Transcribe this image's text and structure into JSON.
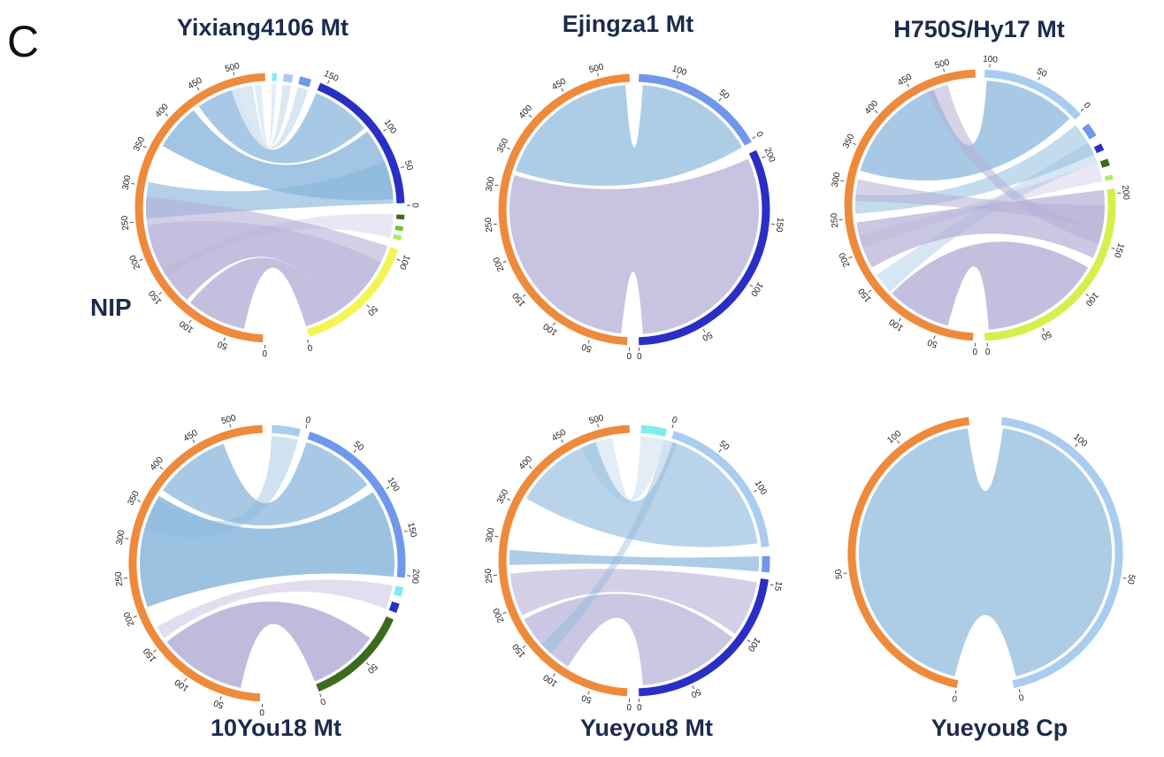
{
  "panel_label": "C",
  "row_label": "NIP",
  "colors": {
    "nip": "#ee8a3c",
    "blue_link": "#8ab7dc",
    "purple_link": "#b4afd6",
    "title": "#1c2b4d"
  },
  "diagrams": [
    {
      "title": "Yixiang4106 Mt",
      "segments": [
        {
          "name": "NIP",
          "color": "#ee8a3c",
          "ticks": [
            "0",
            "50",
            "100",
            "150",
            "200",
            "250",
            "300",
            "350",
            "400",
            "450",
            "500"
          ]
        },
        {
          "name": "",
          "color": "#7fecef",
          "ticks": []
        },
        {
          "name": "",
          "color": "#a9ccf0",
          "ticks": []
        },
        {
          "name": "",
          "color": "#6f98ec",
          "ticks": []
        },
        {
          "name": "",
          "color": "#2a2fc4",
          "ticks": [
            "0",
            "50",
            "100",
            "150"
          ]
        },
        {
          "name": "",
          "color": "#3d6b1e",
          "ticks": []
        },
        {
          "name": "",
          "color": "#64c83a",
          "ticks": []
        },
        {
          "name": "",
          "color": "#a8ec66",
          "ticks": []
        },
        {
          "name": "",
          "color": "#f4f554",
          "ticks": [
            "0",
            "50",
            "100"
          ]
        }
      ]
    },
    {
      "title": "Ejingza1 Mt",
      "segments": [
        {
          "name": "NIP",
          "color": "#ee8a3c",
          "ticks": [
            "0",
            "50",
            "100",
            "150",
            "200",
            "250",
            "300",
            "350",
            "400",
            "450",
            "500"
          ]
        },
        {
          "name": "",
          "color": "#6f98ec",
          "ticks": [
            "0",
            "50",
            "100"
          ]
        },
        {
          "name": "",
          "color": "#2a2fc4",
          "ticks": [
            "0",
            "50",
            "100",
            "150",
            "200"
          ]
        }
      ]
    },
    {
      "title": "H750S/Hy17 Mt",
      "segments": [
        {
          "name": "NIP",
          "color": "#ee8a3c",
          "ticks": [
            "0",
            "50",
            "100",
            "150",
            "200",
            "250",
            "300",
            "350",
            "400",
            "450",
            "500"
          ]
        },
        {
          "name": "",
          "color": "#a9ccf0",
          "ticks": [
            "0",
            "50",
            "100"
          ]
        },
        {
          "name": "",
          "color": "#6f98ec",
          "ticks": []
        },
        {
          "name": "",
          "color": "#2a2fc4",
          "ticks": []
        },
        {
          "name": "",
          "color": "#3d6b1e",
          "ticks": []
        },
        {
          "name": "",
          "color": "#a8ec66",
          "ticks": []
        },
        {
          "name": "",
          "color": "#d6ef4c",
          "ticks": [
            "0",
            "50",
            "100",
            "150",
            "200"
          ]
        }
      ]
    },
    {
      "title": "10You18 Mt",
      "segments": [
        {
          "name": "NIP",
          "color": "#ee8a3c",
          "ticks": [
            "0",
            "50",
            "100",
            "150",
            "200",
            "250",
            "300",
            "350",
            "400",
            "450",
            "500"
          ]
        },
        {
          "name": "",
          "color": "#a9ccf0",
          "ticks": []
        },
        {
          "name": "",
          "color": "#6f98ec",
          "ticks": [
            "0",
            "50",
            "100",
            "150",
            "200"
          ]
        },
        {
          "name": "",
          "color": "#7fecef",
          "ticks": []
        },
        {
          "name": "",
          "color": "#2a2fc4",
          "ticks": []
        },
        {
          "name": "",
          "color": "#3d6b1e",
          "ticks": [
            "0",
            "50"
          ]
        }
      ]
    },
    {
      "title": "Yueyou8 Mt",
      "segments": [
        {
          "name": "NIP",
          "color": "#ee8a3c",
          "ticks": [
            "0",
            "50",
            "100",
            "150",
            "200",
            "250",
            "300",
            "350",
            "400",
            "450",
            "500"
          ]
        },
        {
          "name": "",
          "color": "#7fecef",
          "ticks": []
        },
        {
          "name": "",
          "color": "#a9ccf0",
          "ticks": [
            "0",
            "50",
            "100"
          ]
        },
        {
          "name": "",
          "color": "#6f98ec",
          "ticks": []
        },
        {
          "name": "",
          "color": "#2a2fc4",
          "ticks": [
            "0",
            "50",
            "100",
            "15"
          ]
        }
      ]
    },
    {
      "title": "Yueyou8 Cp",
      "segments": [
        {
          "name": "NIP",
          "color": "#ee8a3c",
          "ticks": [
            "0",
            "50",
            "100"
          ]
        },
        {
          "name": "",
          "color": "#a9ccf0",
          "ticks": [
            "0",
            "50",
            "100"
          ]
        }
      ]
    }
  ]
}
